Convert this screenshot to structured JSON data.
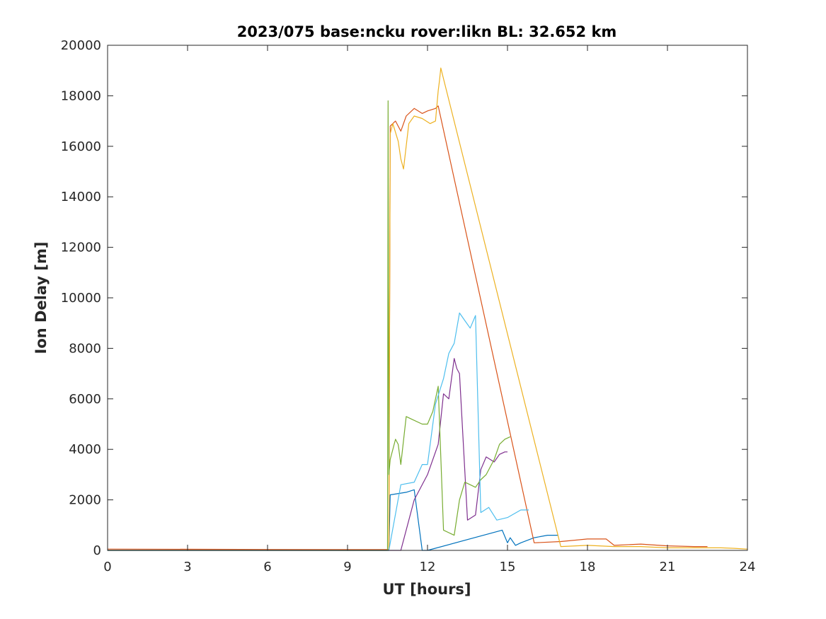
{
  "chart_data": {
    "type": "line",
    "title": "2023/075 base:ncku rover:likn BL: 32.652 km",
    "xlabel": "UT [hours]",
    "ylabel": "Ion Delay [m]",
    "xlim": [
      0,
      24
    ],
    "ylim": [
      0,
      20000
    ],
    "xticks": [
      0,
      3,
      6,
      9,
      12,
      15,
      18,
      21,
      24
    ],
    "yticks": [
      0,
      2000,
      4000,
      6000,
      8000,
      10000,
      12000,
      14000,
      16000,
      18000,
      20000
    ],
    "grid": false,
    "legend": "none",
    "colors": [
      "#0072BD",
      "#D95319",
      "#EDB120",
      "#7E2F8E",
      "#77AC30",
      "#4DBEEE"
    ],
    "series": [
      {
        "color": "#0072BD",
        "x": [
          0,
          3,
          6,
          9,
          10.55,
          10.6,
          11.2,
          11.5,
          11.8,
          12.0,
          14.8,
          15.0,
          15.1,
          15.3,
          15.5,
          16.0,
          16.5,
          16.9
        ],
        "y": [
          0,
          0,
          0,
          0,
          0,
          2200,
          2300,
          2400,
          0,
          0,
          800,
          300,
          500,
          200,
          300,
          500,
          600,
          600
        ]
      },
      {
        "color": "#D95319",
        "x": [
          0,
          9,
          10.55,
          10.6,
          10.8,
          11.0,
          11.2,
          11.5,
          11.8,
          12.0,
          12.3,
          12.4,
          16.0,
          17.0,
          18.0,
          18.7,
          19.0,
          20.0,
          21.0,
          22.0,
          22.5
        ],
        "y": [
          50,
          30,
          30,
          16800,
          17000,
          16600,
          17200,
          17500,
          17300,
          17400,
          17500,
          17600,
          300,
          350,
          450,
          450,
          200,
          250,
          180,
          150,
          150
        ]
      },
      {
        "color": "#EDB120",
        "x": [
          0,
          9,
          10.55,
          10.6,
          10.7,
          10.9,
          11.0,
          11.1,
          11.3,
          11.5,
          11.8,
          12.1,
          12.3,
          12.4,
          12.45,
          12.5,
          17.0,
          18.0,
          19.0,
          20.0,
          21.0,
          22.0,
          23.0,
          23.5,
          24.0
        ],
        "y": [
          0,
          0,
          0,
          16500,
          16900,
          16200,
          15500,
          15100,
          16900,
          17200,
          17100,
          16900,
          17000,
          18200,
          18600,
          19100,
          150,
          200,
          150,
          150,
          100,
          100,
          100,
          80,
          50
        ]
      },
      {
        "color": "#7E2F8E",
        "x": [
          0,
          9,
          10.55,
          11.0,
          11.5,
          12.0,
          12.4,
          12.6,
          12.8,
          13.0,
          13.1,
          13.2,
          13.5,
          13.8,
          14.0,
          14.2,
          14.5,
          14.7,
          14.9,
          15.0
        ],
        "y": [
          0,
          0,
          0,
          0,
          2000,
          3000,
          4200,
          6200,
          6000,
          7600,
          7200,
          7000,
          1200,
          1400,
          3200,
          3700,
          3500,
          3800,
          3900,
          3900
        ]
      },
      {
        "color": "#77AC30",
        "x": [
          0,
          9,
          10.5,
          10.52,
          10.55,
          10.6,
          10.8,
          10.9,
          11.0,
          11.2,
          11.4,
          11.8,
          12.0,
          12.2,
          12.4,
          12.6,
          13.0,
          13.2,
          13.4,
          13.6,
          13.8,
          14.0,
          14.2,
          14.5,
          14.7,
          14.9,
          15.1
        ],
        "y": [
          0,
          0,
          0,
          17800,
          3000,
          3600,
          4400,
          4200,
          3400,
          5300,
          5200,
          5000,
          5000,
          5500,
          6500,
          800,
          600,
          2000,
          2700,
          2600,
          2500,
          2800,
          3000,
          3600,
          4200,
          4400,
          4500
        ]
      },
      {
        "color": "#4DBEEE",
        "x": [
          0,
          9,
          10.55,
          11.0,
          11.5,
          11.8,
          12.0,
          12.3,
          12.6,
          12.8,
          13.0,
          13.2,
          13.4,
          13.6,
          13.8,
          14.0,
          14.3,
          14.6,
          15.0,
          15.5,
          15.8
        ],
        "y": [
          0,
          0,
          0,
          2600,
          2700,
          3400,
          3400,
          5800,
          6800,
          7800,
          8200,
          9400,
          9100,
          8800,
          9300,
          1500,
          1700,
          1200,
          1300,
          1600,
          1600
        ]
      }
    ]
  }
}
